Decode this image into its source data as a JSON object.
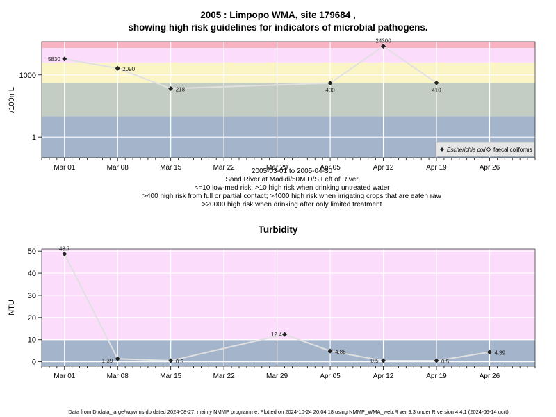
{
  "chart1": {
    "title_line1": "2005 : Limpopo WMA, site 179684 ,",
    "title_line2": "showing high risk guidelines for indicators of microbial pathogens.",
    "ylabel": "/100mL",
    "y_scale": "log10",
    "ylim": [
      0.1,
      40000
    ],
    "y_ticks": [
      {
        "v": 1,
        "label": "1"
      },
      {
        "v": 1000,
        "label": "1000"
      }
    ],
    "x_ticks": [
      "Mar 01",
      "Mar 08",
      "Mar 15",
      "Mar 22",
      "Mar 29",
      "Apr 05",
      "Apr 12",
      "Apr 19",
      "Apr 26"
    ],
    "date_range": "2005-03-01 to 2005-04-30",
    "site_name": "Sand River at Madidi/50M D/S Left of River",
    "notes": [
      "<=10 low-med risk; >10 high risk when drinking untreated water",
      ">400 high risk from full or partial contact; >4000 high risk when irrigating crops that are eaten raw",
      ">20000 high risk when drinking after only limited treatment"
    ],
    "bands": [
      {
        "from": 0.1,
        "to": 10,
        "color": "#a4b4cb"
      },
      {
        "from": 10,
        "to": 400,
        "color": "#c3cdc3"
      },
      {
        "from": 400,
        "to": 4000,
        "color": "#fbf4c4"
      },
      {
        "from": 4000,
        "to": 20000,
        "color": "#fbdcfa"
      },
      {
        "from": 20000,
        "to": 40000,
        "color": "#f9b4c4"
      }
    ],
    "legend": [
      {
        "label": "Escherichia coli",
        "marker": "filled-diamond"
      },
      {
        "label": "faecal coliforms",
        "marker": "open-diamond"
      }
    ],
    "series": [
      {
        "name": "Escherichia coli",
        "points": [
          {
            "date": "2005-03-01",
            "value": 5830,
            "label": "5830"
          },
          {
            "date": "2005-03-08",
            "value": 2090,
            "label": "2090"
          },
          {
            "date": "2005-03-15",
            "value": 218,
            "label": "218"
          },
          {
            "date": "2005-04-05",
            "value": 400,
            "label": "400"
          },
          {
            "date": "2005-04-12",
            "value": 24300,
            "label": "24300"
          },
          {
            "date": "2005-04-19",
            "value": 410,
            "label": "410"
          }
        ]
      }
    ]
  },
  "chart2": {
    "title": "Turbidity",
    "ylabel": "NTU",
    "y_scale": "linear",
    "ylim": [
      -2,
      51
    ],
    "y_ticks": [
      0,
      10,
      20,
      30,
      40,
      50
    ],
    "x_ticks": [
      "Mar 01",
      "Mar 08",
      "Mar 15",
      "Mar 22",
      "Mar 29",
      "Apr 05",
      "Apr 12",
      "Apr 19",
      "Apr 26"
    ],
    "bands": [
      {
        "from": -2,
        "to": 10,
        "color": "#a4b4cb"
      },
      {
        "from": 10,
        "to": 51,
        "color": "#fbdcfa"
      }
    ],
    "series": [
      {
        "name": "Turbidity",
        "points": [
          {
            "date": "2005-03-01",
            "value": 48.7,
            "label": "48.7"
          },
          {
            "date": "2005-03-08",
            "value": 1.39,
            "label": "1.39"
          },
          {
            "date": "2005-03-15",
            "value": 0.5,
            "label": "0.5"
          },
          {
            "date": "2005-03-30",
            "value": 12.4,
            "label": "12.4"
          },
          {
            "date": "2005-04-05",
            "value": 4.86,
            "label": "4.86"
          },
          {
            "date": "2005-04-12",
            "value": 0.5,
            "label": "0.5"
          },
          {
            "date": "2005-04-19",
            "value": 0.5,
            "label": "0.5"
          },
          {
            "date": "2005-04-26",
            "value": 4.39,
            "label": "4.39"
          }
        ]
      }
    ]
  },
  "footer": "Data from D:/data_large/wq/wms.db dated 2024-08-27, mainly NMMP programme. Plotted on 2024-10-24 20:04:18 using NMMP_WMA_web.R ver 9.3 under R version 4.4.1 (2024-06-14 ucrt)",
  "colors": {
    "grid": "#ffffff",
    "line": "#e0e0e0",
    "marker": "#222222"
  }
}
